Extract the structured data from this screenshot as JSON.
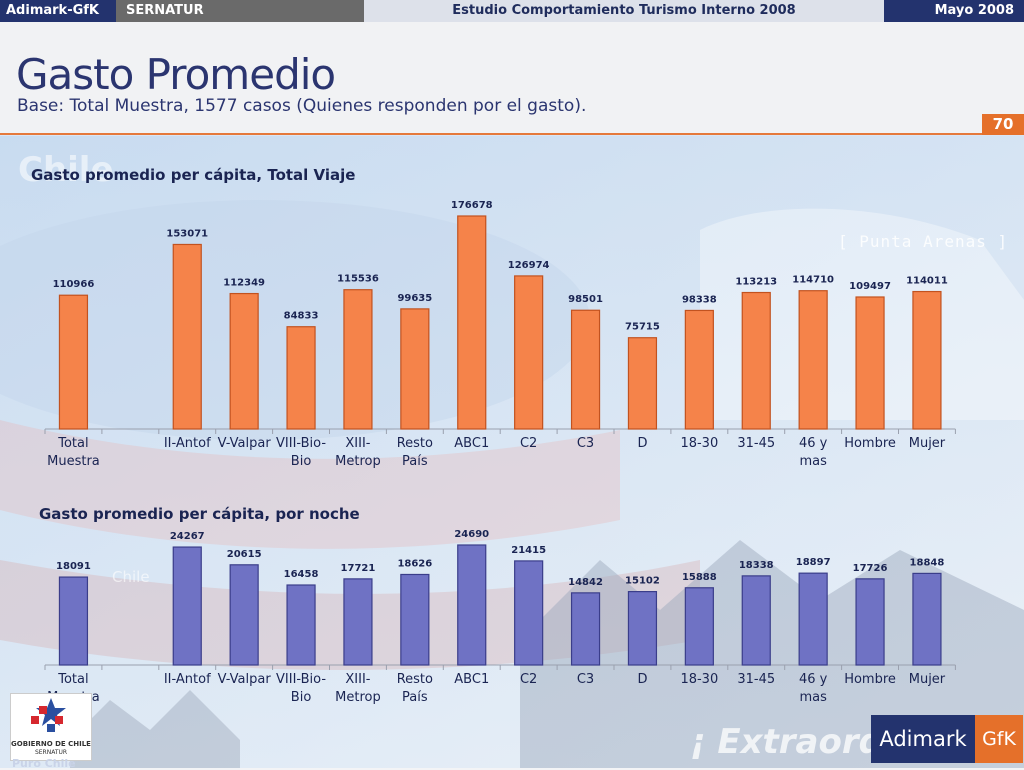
{
  "header": {
    "brand": "Adimark-GfK",
    "client": "SERNATUR",
    "study": "Estudio Comportamiento Turismo Interno 2008",
    "date": "Mayo 2008"
  },
  "slide": {
    "title": "Gasto Promedio",
    "subtitle": "Base: Total Muestra, 1577 casos (Quienes responden por el gasto).",
    "page_number": "70"
  },
  "background_text": {
    "chile": "Chile",
    "punta_arenas": "[ Punta Arenas ]",
    "chile_small": "Chile",
    "extraordinario": "¡ Extraord",
    "puro_chile": "Puro Chile"
  },
  "logos": {
    "gobierno_line1": "GOBIERNO DE CHILE",
    "gobierno_line2": "SERNATUR",
    "adimark": "Adimark",
    "gfk": "GfK"
  },
  "colors": {
    "bar_orange": "#f5834a",
    "bar_blue": "#6f72c4",
    "navy": "#23336e",
    "accent": "#e5702a"
  },
  "chart_data": [
    {
      "type": "bar",
      "title": "Gasto promedio per cápita, Total Viaje",
      "categories": [
        [
          "Total",
          "Muestra"
        ],
        [
          "",
          ""
        ],
        [
          "II-Antof",
          ""
        ],
        [
          "V-Valpar",
          ""
        ],
        [
          "VIII-Bio-",
          "Bio"
        ],
        [
          "XIII-",
          "Metrop"
        ],
        [
          "Resto",
          "País"
        ],
        [
          "ABC1",
          ""
        ],
        [
          "C2",
          ""
        ],
        [
          "C3",
          ""
        ],
        [
          "D",
          ""
        ],
        [
          "18-30",
          ""
        ],
        [
          "31-45",
          ""
        ],
        [
          "46 y",
          "mas"
        ],
        [
          "Hombre",
          ""
        ],
        [
          "Mujer",
          ""
        ]
      ],
      "values": [
        110966,
        null,
        153071,
        112349,
        84833,
        115536,
        99635,
        176678,
        126974,
        98501,
        75715,
        98338,
        113213,
        114710,
        109497,
        114011
      ],
      "labels": [
        "110966",
        "",
        "153071",
        "112349",
        "84833",
        "115536",
        "99635",
        "176678",
        "126974",
        "98501",
        "75715",
        "98338",
        "113213",
        "114710",
        "109497",
        "114011"
      ],
      "ylim": [
        0,
        176678
      ],
      "grid": false,
      "legend": "none"
    },
    {
      "type": "bar",
      "title": "Gasto promedio per cápita, por noche",
      "categories": [
        [
          "Total",
          "Muestra"
        ],
        [
          "",
          ""
        ],
        [
          "II-Antof",
          ""
        ],
        [
          "V-Valpar",
          ""
        ],
        [
          "VIII-Bio-",
          "Bio"
        ],
        [
          "XIII-",
          "Metrop"
        ],
        [
          "Resto",
          "País"
        ],
        [
          "ABC1",
          ""
        ],
        [
          "C2",
          ""
        ],
        [
          "C3",
          ""
        ],
        [
          "D",
          ""
        ],
        [
          "18-30",
          ""
        ],
        [
          "31-45",
          ""
        ],
        [
          "46 y",
          "mas"
        ],
        [
          "Hombre",
          ""
        ],
        [
          "Mujer",
          ""
        ]
      ],
      "values": [
        18091,
        null,
        24267,
        20615,
        16458,
        17721,
        18626,
        24690,
        21415,
        14842,
        15102,
        15888,
        18338,
        18897,
        17726,
        18848
      ],
      "labels": [
        "18091",
        "",
        "24267",
        "20615",
        "16458",
        "17721",
        "18626",
        "24690",
        "21415",
        "14842",
        "15102",
        "15888",
        "18338",
        "18897",
        "17726",
        "18848"
      ],
      "ylim": [
        0,
        24690
      ],
      "grid": false,
      "legend": "none"
    }
  ]
}
